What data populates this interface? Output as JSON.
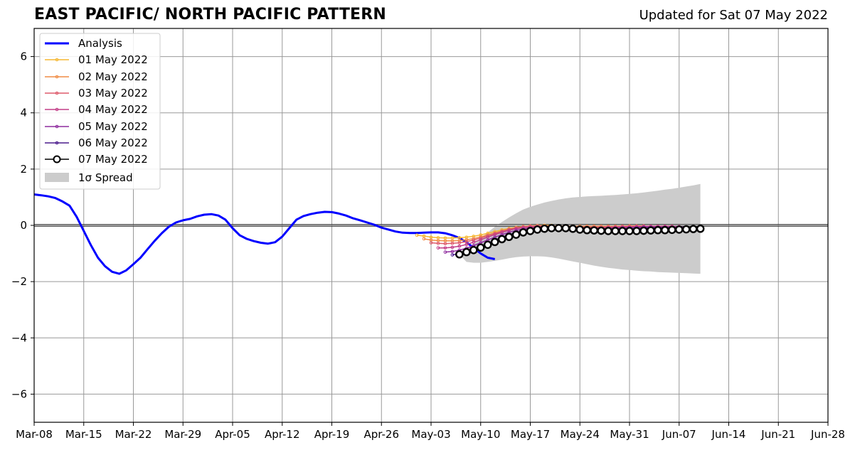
{
  "header": {
    "title": "EAST PACIFIC/ NORTH PACIFIC PATTERN",
    "updated": "Updated for Sat 07 May 2022"
  },
  "colors": {
    "analysis": "#0000ff",
    "forecast_07": "#000000",
    "spread": "#cccccc",
    "grid": "#999999"
  },
  "chart_data": {
    "type": "line",
    "title": "EAST PACIFIC/ NORTH PACIFIC PATTERN",
    "xlabel": "",
    "ylabel": "",
    "xlim": [
      "2022-03-08",
      "2022-06-28"
    ],
    "ylim": [
      -7,
      7
    ],
    "grid": true,
    "legend_position": "top-left",
    "x_tick_labels": [
      "Mar-08",
      "Mar-15",
      "Mar-22",
      "Mar-29",
      "Apr-05",
      "Apr-12",
      "Apr-19",
      "Apr-26",
      "May-03",
      "May-10",
      "May-17",
      "May-24",
      "May-31",
      "Jun-07",
      "Jun-14",
      "Jun-21",
      "Jun-28"
    ],
    "y_ticks": [
      -6,
      -4,
      -2,
      0,
      2,
      4,
      6
    ],
    "y_tick_labels": [
      "−6",
      "−4",
      "−2",
      "0",
      "2",
      "4",
      "6"
    ],
    "series": [
      {
        "name": "Analysis",
        "color": "#0000ff",
        "start_date": "2022-03-08",
        "values": [
          1.1,
          1.07,
          1.03,
          0.97,
          0.85,
          0.7,
          0.3,
          -0.2,
          -0.7,
          -1.15,
          -1.45,
          -1.65,
          -1.72,
          -1.6,
          -1.38,
          -1.15,
          -0.85,
          -0.55,
          -0.28,
          -0.05,
          0.1,
          0.18,
          0.23,
          0.32,
          0.38,
          0.4,
          0.35,
          0.2,
          -0.1,
          -0.35,
          -0.48,
          -0.56,
          -0.62,
          -0.65,
          -0.6,
          -0.4,
          -0.1,
          0.2,
          0.33,
          0.4,
          0.45,
          0.48,
          0.47,
          0.42,
          0.35,
          0.25,
          0.18,
          0.1,
          0.02,
          -0.08,
          -0.15,
          -0.22,
          -0.26,
          -0.27,
          -0.27,
          -0.26,
          -0.25,
          -0.25,
          -0.28,
          -0.35,
          -0.45,
          -0.6,
          -0.8,
          -1.0,
          -1.15,
          -1.2
        ]
      },
      {
        "name": "01 May 2022",
        "color": "#f5b731",
        "start_date": "2022-05-01",
        "values": [
          -0.35,
          -0.38,
          -0.42,
          -0.44,
          -0.45,
          -0.45,
          -0.44,
          -0.42,
          -0.39,
          -0.34,
          -0.28,
          -0.22,
          -0.16,
          -0.11,
          -0.07,
          -0.04,
          -0.02,
          -0.01,
          0.0,
          0.0
        ]
      },
      {
        "name": "02 May 2022",
        "color": "#f08c45",
        "start_date": "2022-05-02",
        "values": [
          -0.48,
          -0.52,
          -0.54,
          -0.55,
          -0.55,
          -0.54,
          -0.51,
          -0.47,
          -0.41,
          -0.34,
          -0.27,
          -0.2,
          -0.14,
          -0.09,
          -0.06,
          -0.04,
          -0.03,
          -0.02,
          -0.02,
          -0.02,
          -0.03,
          -0.03,
          -0.03,
          -0.03,
          -0.03,
          -0.03,
          -0.03,
          -0.03,
          -0.03,
          -0.02,
          -0.02,
          -0.02
        ]
      },
      {
        "name": "03 May 2022",
        "color": "#dd5a6b",
        "start_date": "2022-05-03",
        "values": [
          -0.62,
          -0.64,
          -0.65,
          -0.64,
          -0.62,
          -0.58,
          -0.52,
          -0.45,
          -0.37,
          -0.29,
          -0.21,
          -0.14,
          -0.09,
          -0.05,
          -0.03,
          -0.02,
          -0.02,
          -0.03,
          -0.04,
          -0.05,
          -0.06,
          -0.06,
          -0.06,
          -0.06,
          -0.06,
          -0.05,
          -0.05,
          -0.04,
          -0.04,
          -0.03,
          -0.03,
          -0.03,
          -0.03,
          -0.03,
          -0.03
        ]
      },
      {
        "name": "04 May 2022",
        "color": "#c23d87",
        "start_date": "2022-05-04",
        "values": [
          -0.8,
          -0.8,
          -0.78,
          -0.74,
          -0.68,
          -0.6,
          -0.51,
          -0.42,
          -0.33,
          -0.25,
          -0.18,
          -0.12,
          -0.08,
          -0.06,
          -0.05,
          -0.05,
          -0.06,
          -0.07,
          -0.08,
          -0.09,
          -0.09,
          -0.09,
          -0.09,
          -0.09,
          -0.08,
          -0.07,
          -0.06,
          -0.06,
          -0.05,
          -0.04,
          -0.04,
          -0.04,
          -0.04,
          -0.04,
          -0.04
        ]
      },
      {
        "name": "05 May 2022",
        "color": "#8e2b9e",
        "start_date": "2022-05-05",
        "values": [
          -0.95,
          -0.93,
          -0.88,
          -0.81,
          -0.72,
          -0.62,
          -0.52,
          -0.42,
          -0.33,
          -0.25,
          -0.18,
          -0.13,
          -0.1,
          -0.08,
          -0.08,
          -0.09,
          -0.1,
          -0.11,
          -0.12,
          -0.13,
          -0.13,
          -0.13,
          -0.12,
          -0.11,
          -0.1,
          -0.09,
          -0.08,
          -0.07,
          -0.06,
          -0.06,
          -0.06,
          -0.06,
          -0.06,
          -0.06,
          -0.06
        ]
      },
      {
        "name": "06 May 2022",
        "color": "#4a1a8c",
        "start_date": "2022-05-06",
        "values": [
          -1.05,
          -1.0,
          -0.93,
          -0.84,
          -0.74,
          -0.63,
          -0.52,
          -0.42,
          -0.33,
          -0.25,
          -0.19,
          -0.15,
          -0.12,
          -0.11,
          -0.11,
          -0.12,
          -0.13,
          -0.14,
          -0.15,
          -0.16,
          -0.16,
          -0.16,
          -0.15,
          -0.14,
          -0.13,
          -0.12,
          -0.11,
          -0.1,
          -0.09,
          -0.09,
          -0.09,
          -0.09,
          -0.09,
          -0.09,
          -0.09
        ]
      },
      {
        "name": "07 May 2022",
        "color": "#000000",
        "start_date": "2022-05-07",
        "values": [
          -1.03,
          -0.95,
          -0.88,
          -0.79,
          -0.69,
          -0.59,
          -0.49,
          -0.41,
          -0.33,
          -0.25,
          -0.2,
          -0.15,
          -0.12,
          -0.1,
          -0.1,
          -0.1,
          -0.12,
          -0.15,
          -0.17,
          -0.18,
          -0.19,
          -0.2,
          -0.2,
          -0.2,
          -0.2,
          -0.2,
          -0.19,
          -0.18,
          -0.17,
          -0.17,
          -0.16,
          -0.15,
          -0.14,
          -0.13,
          -0.12
        ]
      }
    ],
    "spread": {
      "name": "1σ Spread",
      "start_date": "2022-05-07",
      "upper": [
        -1.03,
        -0.85,
        -0.65,
        -0.45,
        -0.25,
        -0.05,
        0.12,
        0.28,
        0.43,
        0.56,
        0.66,
        0.74,
        0.81,
        0.87,
        0.92,
        0.96,
        0.99,
        1.01,
        1.03,
        1.04,
        1.05,
        1.07,
        1.08,
        1.1,
        1.12,
        1.14,
        1.17,
        1.2,
        1.23,
        1.27,
        1.3,
        1.34,
        1.38,
        1.42,
        1.47
      ],
      "lower": [
        -1.03,
        -1.3,
        -1.33,
        -1.33,
        -1.3,
        -1.26,
        -1.22,
        -1.17,
        -1.13,
        -1.11,
        -1.1,
        -1.1,
        -1.11,
        -1.14,
        -1.18,
        -1.23,
        -1.28,
        -1.33,
        -1.38,
        -1.43,
        -1.47,
        -1.51,
        -1.54,
        -1.57,
        -1.59,
        -1.61,
        -1.63,
        -1.64,
        -1.66,
        -1.67,
        -1.68,
        -1.69,
        -1.7,
        -1.71,
        -1.72
      ]
    }
  }
}
